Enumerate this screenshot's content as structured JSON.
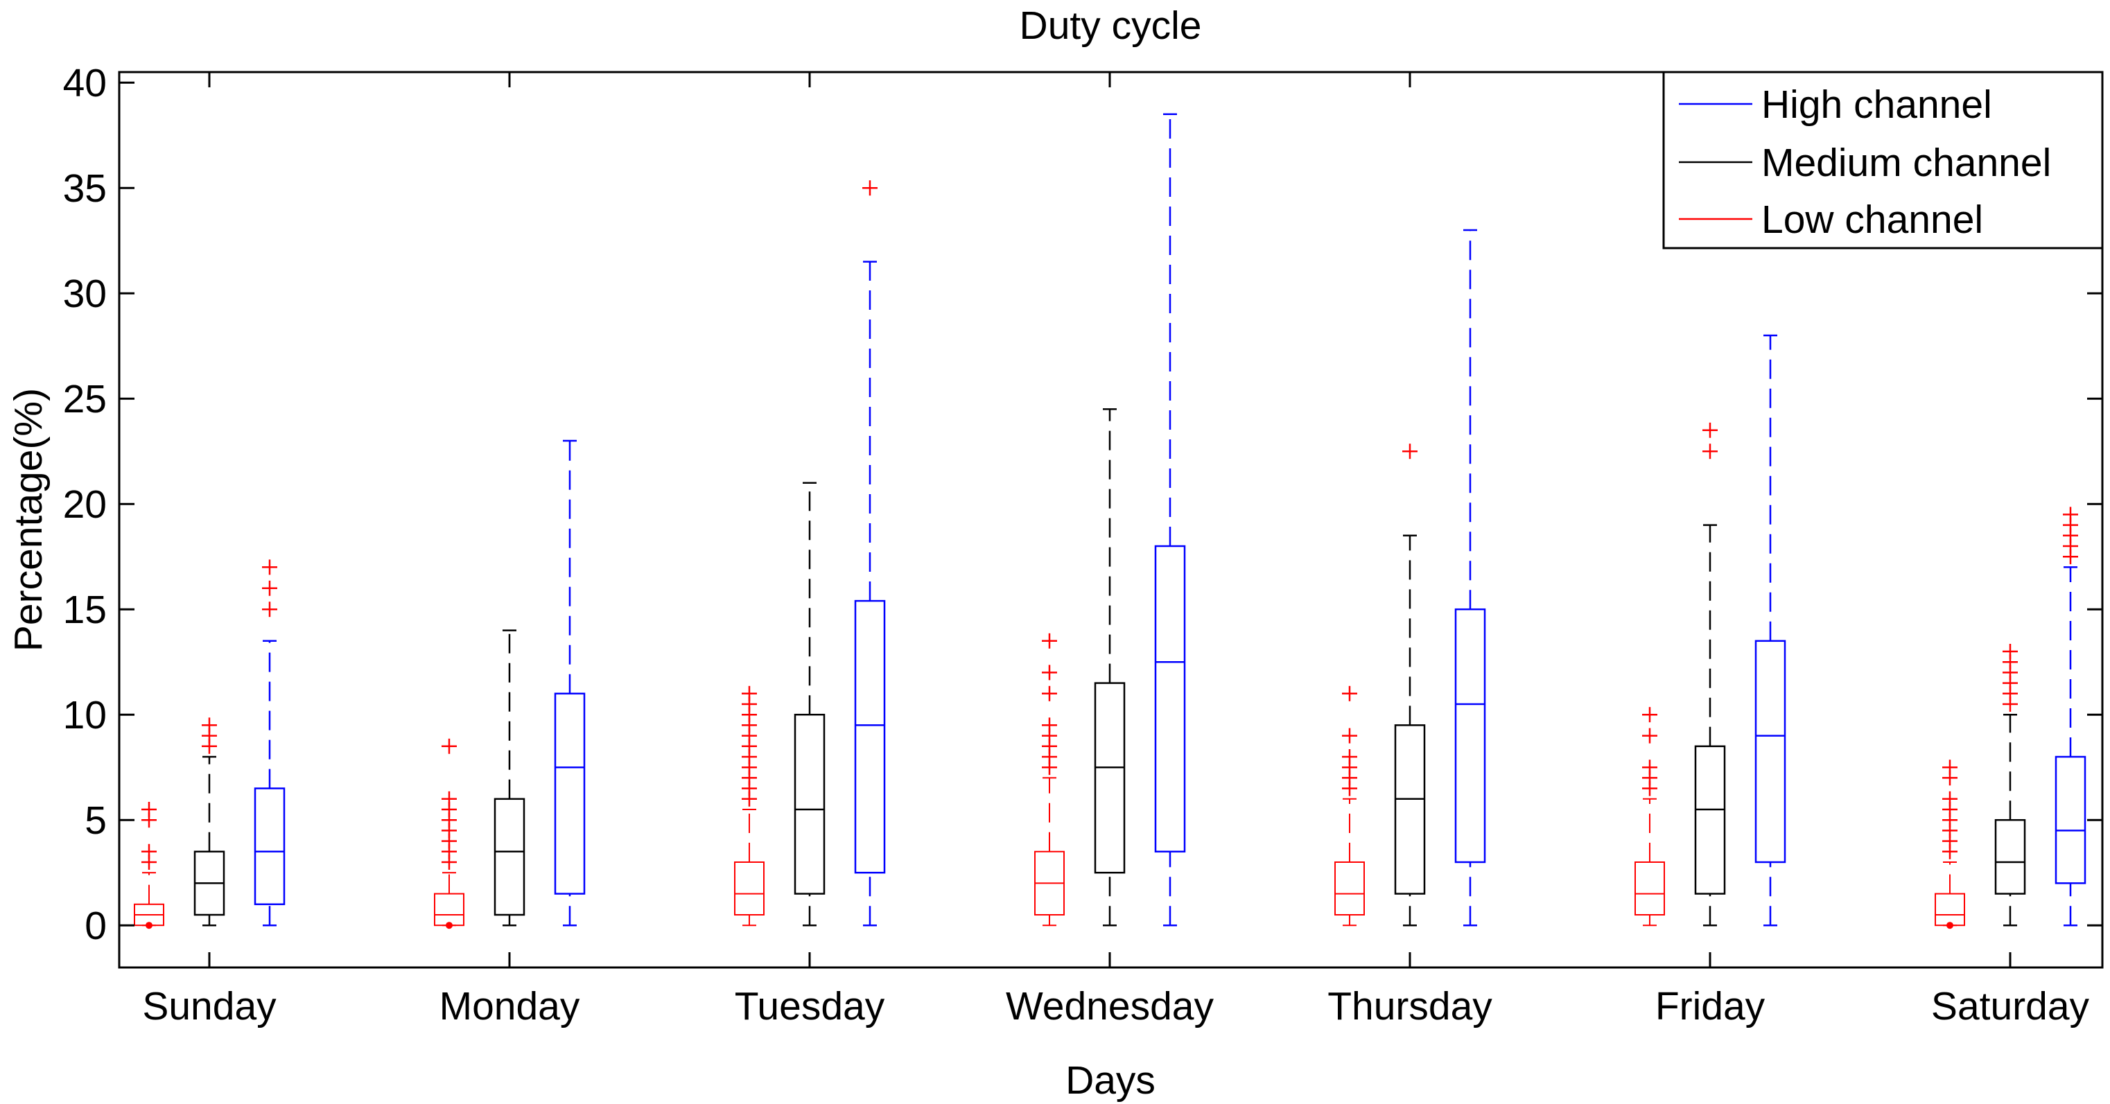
{
  "chart_data": {
    "type": "boxplot",
    "title": "Duty cycle",
    "xlabel": "Days",
    "ylabel": "Percentage(%)",
    "ylim": [
      -2,
      40.5
    ],
    "yticks": [
      0,
      5,
      10,
      15,
      20,
      25,
      30,
      35,
      40
    ],
    "grid": false,
    "legend_position": "top-right",
    "categories": [
      "Sunday",
      "Monday",
      "Tuesday",
      "Wednesday",
      "Thursday",
      "Friday",
      "Saturday"
    ],
    "colors": {
      "High channel": "#0000ff",
      "Medium channel": "#000000",
      "Low channel": "#ff0000",
      "outlier": "#ff0000"
    },
    "legend_order": [
      "High channel",
      "Medium channel",
      "Low channel"
    ],
    "series": [
      {
        "name": "Low channel",
        "boxes": [
          {
            "category": "Sunday",
            "min": 0,
            "q1": 0,
            "median": 0.5,
            "q3": 1,
            "max": 2.5,
            "outliers": [
              3,
              3.5,
              5,
              5.5,
              0
            ]
          },
          {
            "category": "Monday",
            "min": 0,
            "q1": 0,
            "median": 0.5,
            "q3": 1.5,
            "max": 2.5,
            "outliers": [
              3,
              3.5,
              4,
              4.5,
              5,
              5.5,
              6,
              8.5,
              0
            ]
          },
          {
            "category": "Tuesday",
            "min": 0,
            "q1": 0.5,
            "median": 1.5,
            "q3": 3,
            "max": 5.5,
            "outliers": [
              6,
              6.5,
              7,
              7.5,
              8,
              8.5,
              9,
              9.5,
              10,
              10.5,
              11
            ]
          },
          {
            "category": "Wednesday",
            "min": 0,
            "q1": 0.5,
            "median": 2,
            "q3": 3.5,
            "max": 7,
            "outliers": [
              7.5,
              8,
              8.5,
              9,
              9.5,
              11,
              12,
              13.5
            ]
          },
          {
            "category": "Thursday",
            "min": 0,
            "q1": 0.5,
            "median": 1.5,
            "q3": 3,
            "max": 6,
            "outliers": [
              6.5,
              7,
              7.5,
              8,
              9,
              11
            ]
          },
          {
            "category": "Friday",
            "min": 0,
            "q1": 0.5,
            "median": 1.5,
            "q3": 3,
            "max": 6,
            "outliers": [
              6.5,
              7,
              7.5,
              9,
              10
            ]
          },
          {
            "category": "Saturday",
            "min": 0,
            "q1": 0,
            "median": 0.5,
            "q3": 1.5,
            "max": 3,
            "outliers": [
              3.5,
              4,
              4.5,
              5,
              5.5,
              6,
              7,
              7.5,
              0
            ]
          }
        ]
      },
      {
        "name": "Medium channel",
        "boxes": [
          {
            "category": "Sunday",
            "min": 0,
            "q1": 0.5,
            "median": 2,
            "q3": 3.5,
            "max": 8,
            "outliers": [
              8.5,
              9,
              9.5
            ]
          },
          {
            "category": "Monday",
            "min": 0,
            "q1": 0.5,
            "median": 3.5,
            "q3": 6,
            "max": 14,
            "outliers": []
          },
          {
            "category": "Tuesday",
            "min": 0,
            "q1": 1.5,
            "median": 5.5,
            "q3": 10,
            "max": 21,
            "outliers": []
          },
          {
            "category": "Wednesday",
            "min": 0,
            "q1": 2.5,
            "median": 7.5,
            "q3": 11.5,
            "max": 24.5,
            "outliers": []
          },
          {
            "category": "Thursday",
            "min": 0,
            "q1": 1.5,
            "median": 6,
            "q3": 9.5,
            "max": 18.5,
            "outliers": [
              22.5
            ]
          },
          {
            "category": "Friday",
            "min": 0,
            "q1": 1.5,
            "median": 5.5,
            "q3": 8.5,
            "max": 19,
            "outliers": [
              22.5,
              23.5
            ]
          },
          {
            "category": "Saturday",
            "min": 0,
            "q1": 1.5,
            "median": 3,
            "q3": 5,
            "max": 10,
            "outliers": [
              10.5,
              11,
              11.5,
              12,
              12.5,
              13
            ]
          }
        ]
      },
      {
        "name": "High channel",
        "boxes": [
          {
            "category": "Sunday",
            "min": 0,
            "q1": 1,
            "median": 3.5,
            "q3": 6.5,
            "max": 13.5,
            "outliers": [
              15,
              16,
              17
            ]
          },
          {
            "category": "Monday",
            "min": 0,
            "q1": 1.5,
            "median": 7.5,
            "q3": 11,
            "max": 23,
            "outliers": []
          },
          {
            "category": "Tuesday",
            "min": 0,
            "q1": 2.5,
            "median": 9.5,
            "q3": 15.4,
            "max": 31.5,
            "outliers": [
              35
            ]
          },
          {
            "category": "Wednesday",
            "min": 0,
            "q1": 3.5,
            "median": 12.5,
            "q3": 18,
            "max": 38.5,
            "outliers": []
          },
          {
            "category": "Thursday",
            "min": 0,
            "q1": 3,
            "median": 10.5,
            "q3": 15,
            "max": 33,
            "outliers": []
          },
          {
            "category": "Friday",
            "min": 0,
            "q1": 3,
            "median": 9,
            "q3": 13.5,
            "max": 28,
            "outliers": []
          },
          {
            "category": "Saturday",
            "min": 0,
            "q1": 2,
            "median": 4.5,
            "q3": 8,
            "max": 17,
            "outliers": [
              17.5,
              18,
              18.5,
              19,
              19.5
            ]
          }
        ]
      }
    ]
  }
}
